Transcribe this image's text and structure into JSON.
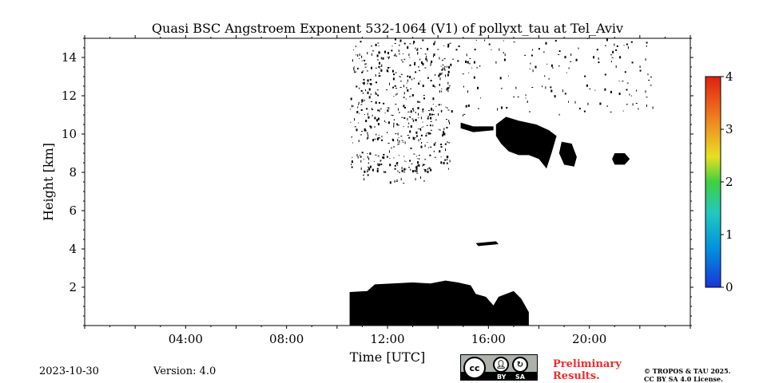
{
  "chart_data": {
    "type": "heatmap",
    "title": "Quasi BSC Angstroem Exponent 532-1064 (V1) of pollyxt_tau at Tel_Aviv",
    "xlabel": "Time [UTC]",
    "ylabel": "Height [km]",
    "xlim": [
      0,
      24
    ],
    "ylim": [
      0,
      15
    ],
    "x_ticks": [
      {
        "value": 4,
        "label": "04:00"
      },
      {
        "value": 8,
        "label": "08:00"
      },
      {
        "value": 12,
        "label": "12:00"
      },
      {
        "value": 16,
        "label": "16:00"
      },
      {
        "value": 20,
        "label": "20:00"
      }
    ],
    "y_ticks": [
      {
        "value": 2,
        "label": "2"
      },
      {
        "value": 4,
        "label": "4"
      },
      {
        "value": 6,
        "label": "6"
      },
      {
        "value": 8,
        "label": "8"
      },
      {
        "value": 10,
        "label": "10"
      },
      {
        "value": 12,
        "label": "12"
      },
      {
        "value": 14,
        "label": "14"
      }
    ],
    "colorbar": {
      "min": 0,
      "max": 4,
      "ticks": [
        {
          "value": 0,
          "label": "0"
        },
        {
          "value": 1,
          "label": "1"
        },
        {
          "value": 2,
          "label": "2"
        },
        {
          "value": 3,
          "label": "3"
        },
        {
          "value": 4,
          "label": "4"
        }
      ],
      "colors": [
        "#1a35d6",
        "#0090e0",
        "#20c8c0",
        "#40d040",
        "#e8e020",
        "#f08020",
        "#e02010"
      ]
    },
    "regions": [
      {
        "name": "boundary-layer",
        "color": "#000000",
        "polygon": [
          [
            10.5,
            0
          ],
          [
            10.5,
            1.75
          ],
          [
            11.2,
            1.8
          ],
          [
            11.5,
            2.15
          ],
          [
            12.2,
            2.2
          ],
          [
            13,
            2.25
          ],
          [
            13.7,
            2.2
          ],
          [
            14.3,
            2.35
          ],
          [
            14.8,
            2.25
          ],
          [
            15.3,
            2.1
          ],
          [
            15.5,
            1.65
          ],
          [
            15.9,
            1.5
          ],
          [
            16.2,
            1.05
          ],
          [
            16.4,
            1.5
          ],
          [
            17,
            1.8
          ],
          [
            17.3,
            1.4
          ],
          [
            17.6,
            0.7
          ],
          [
            17.6,
            0
          ]
        ]
      },
      {
        "name": "cirrus-main",
        "color": "#000000",
        "polygon": [
          [
            16.3,
            10.5
          ],
          [
            16.7,
            10.9
          ],
          [
            17.2,
            10.7
          ],
          [
            17.9,
            10.5
          ],
          [
            18.4,
            10.2
          ],
          [
            18.7,
            9.9
          ],
          [
            18.5,
            9.0
          ],
          [
            18.3,
            8.2
          ],
          [
            18.0,
            8.7
          ],
          [
            17.6,
            8.9
          ],
          [
            17.2,
            8.9
          ],
          [
            16.8,
            9.1
          ],
          [
            16.5,
            9.5
          ],
          [
            16.3,
            9.9
          ]
        ]
      },
      {
        "name": "cirrus-east",
        "color": "#000000",
        "polygon": [
          [
            18.9,
            9.6
          ],
          [
            19.3,
            9.5
          ],
          [
            19.5,
            8.8
          ],
          [
            19.4,
            8.3
          ],
          [
            19.0,
            8.4
          ],
          [
            18.8,
            9.0
          ]
        ]
      },
      {
        "name": "cirrus-far",
        "color": "#000000",
        "polygon": [
          [
            21.0,
            9.0
          ],
          [
            21.4,
            9.0
          ],
          [
            21.6,
            8.7
          ],
          [
            21.4,
            8.4
          ],
          [
            21.0,
            8.4
          ],
          [
            20.9,
            8.7
          ]
        ]
      },
      {
        "name": "cirrus-streak",
        "color": "#000000",
        "polygon": [
          [
            14.9,
            10.6
          ],
          [
            15.4,
            10.4
          ],
          [
            16.2,
            10.4
          ],
          [
            16.2,
            10.2
          ],
          [
            15.4,
            10.1
          ],
          [
            14.9,
            10.3
          ]
        ]
      },
      {
        "name": "aerosol-4km",
        "color": "#000000",
        "polygon": [
          [
            15.5,
            4.3
          ],
          [
            16.3,
            4.4
          ],
          [
            16.4,
            4.25
          ],
          [
            15.6,
            4.15
          ]
        ]
      }
    ],
    "scatter_zones": [
      {
        "name": "noise-dense",
        "t0": 10.5,
        "t1": 14.5,
        "h0": 8.0,
        "h1": 15.0,
        "count": 520
      },
      {
        "name": "noise-sparse",
        "t0": 14.5,
        "t1": 22.6,
        "h0": 11.0,
        "h1": 15.0,
        "count": 150
      },
      {
        "name": "noise-low",
        "t0": 11.0,
        "t1": 13.5,
        "h0": 7.4,
        "h1": 8.5,
        "count": 30
      }
    ]
  },
  "footer": {
    "date": "2023-10-30",
    "version": "Version: 4.0",
    "license_badge": {
      "cc": "cc",
      "by": "BY",
      "sa": "SA"
    },
    "preliminary_line1": "Preliminary",
    "preliminary_line2": "Results.",
    "copyright_line1": "© TROPOS & TAU 2025.",
    "copyright_line2": "CC BY SA 4.0 License."
  }
}
